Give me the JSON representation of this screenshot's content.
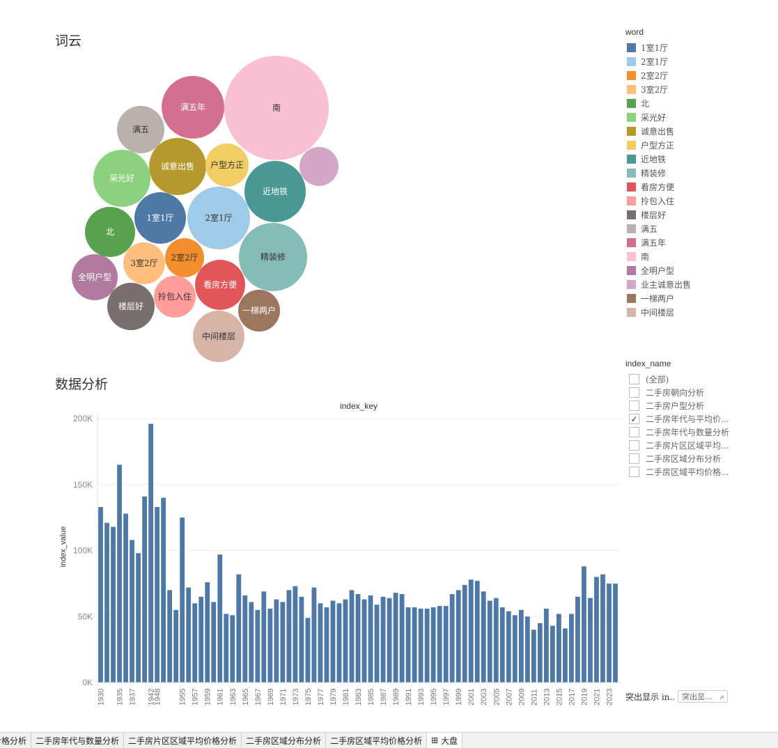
{
  "wordcloud": {
    "title": "词云",
    "legend_title": "word",
    "bubbles": [
      {
        "word": "南",
        "color": "#F9BFD3",
        "label": "南"
      },
      {
        "word": "满五年",
        "color": "#D4708F",
        "label": "满五年"
      },
      {
        "word": "满五",
        "color": "#BAB0AC",
        "label": "满五"
      },
      {
        "word": "业主诚意出售",
        "color": "#D4A6C8",
        "label": ""
      },
      {
        "word": "诚意出售",
        "color": "#B6992D",
        "label": "诚意出售"
      },
      {
        "word": "户型方正",
        "color": "#F1CE63",
        "label": "户型方正"
      },
      {
        "word": "采光好",
        "color": "#8CD17D",
        "label": "采光好"
      },
      {
        "word": "近地铁",
        "color": "#499894",
        "label": "近地铁"
      },
      {
        "word": "1室1厅",
        "color": "#4E79A7",
        "label": "1室1厅"
      },
      {
        "word": "2室1厅",
        "color": "#A0CBE8",
        "label": "2室1厅"
      },
      {
        "word": "北",
        "color": "#59A14F",
        "label": "北"
      },
      {
        "word": "精装修",
        "color": "#86BCB6",
        "label": "精装修"
      },
      {
        "word": "3室2厅",
        "color": "#FFBE7D",
        "label": "3室2厅"
      },
      {
        "word": "2室2厅",
        "color": "#F28E2B",
        "label": "2室2厅"
      },
      {
        "word": "全明户型",
        "color": "#B07AA1",
        "label": "全明户型"
      },
      {
        "word": "看房方便",
        "color": "#E15759",
        "label": "看房方便"
      },
      {
        "word": "拎包入住",
        "color": "#FF9D9A",
        "label": "拎包入住"
      },
      {
        "word": "楼层好",
        "color": "#79706E",
        "label": "楼层好"
      },
      {
        "word": "一梯两户",
        "color": "#9D7660",
        "label": "一梯两户"
      },
      {
        "word": "中间楼层",
        "color": "#D7B5A6",
        "label": "中间楼层"
      }
    ],
    "legend": [
      {
        "label": "1室1厅",
        "color": "#4E79A7"
      },
      {
        "label": "2室1厅",
        "color": "#A0CBE8"
      },
      {
        "label": "2室2厅",
        "color": "#F28E2B"
      },
      {
        "label": "3室2厅",
        "color": "#FFBE7D"
      },
      {
        "label": "北",
        "color": "#59A14F"
      },
      {
        "label": "采光好",
        "color": "#8CD17D"
      },
      {
        "label": "诚意出售",
        "color": "#B6992D"
      },
      {
        "label": "户型方正",
        "color": "#F1CE63"
      },
      {
        "label": "近地铁",
        "color": "#499894"
      },
      {
        "label": "精装修",
        "color": "#86BCB6"
      },
      {
        "label": "看房方便",
        "color": "#E15759"
      },
      {
        "label": "拎包入住",
        "color": "#FF9D9A"
      },
      {
        "label": "楼层好",
        "color": "#79706E"
      },
      {
        "label": "满五",
        "color": "#BAB0AC"
      },
      {
        "label": "满五年",
        "color": "#D4708F"
      },
      {
        "label": "南",
        "color": "#F9BFD3"
      },
      {
        "label": "全明户型",
        "color": "#B07AA1"
      },
      {
        "label": "业主诚意出售",
        "color": "#D4A6C8"
      },
      {
        "label": "一梯两户",
        "color": "#9D7660"
      },
      {
        "label": "中间楼层",
        "color": "#D7B5A6"
      }
    ]
  },
  "analysis": {
    "title": "数据分析",
    "filter": {
      "title": "index_name",
      "items": [
        {
          "label": "(全部)",
          "checked": false
        },
        {
          "label": "二手房朝向分析",
          "checked": false
        },
        {
          "label": "二手房户型分析",
          "checked": false
        },
        {
          "label": "二手房年代与平均价...",
          "checked": true
        },
        {
          "label": "二手房年代与数量分析",
          "checked": false
        },
        {
          "label": "二手房片区区域平均...",
          "checked": false
        },
        {
          "label": "二手房区域分布分析",
          "checked": false
        },
        {
          "label": "二手房区域平均价格...",
          "checked": false
        }
      ]
    },
    "highlight": {
      "label": "突出显示 in..",
      "placeholder": "突出显...",
      "icon": "search-icon"
    }
  },
  "chart_data": {
    "type": "bar",
    "title": "index_key",
    "xlabel": "",
    "ylabel": "index_value",
    "ylim": [
      0,
      200000
    ],
    "yticks": [
      {
        "v": 0,
        "label": "0K"
      },
      {
        "v": 50000,
        "label": "50K"
      },
      {
        "v": 100000,
        "label": "100K"
      },
      {
        "v": 150000,
        "label": "150K"
      },
      {
        "v": 200000,
        "label": "200K"
      }
    ],
    "grid": true,
    "bar_color": "#4E79A7",
    "categories": [
      "1930",
      "1933",
      "1934",
      "1935",
      "1936",
      "1937",
      "1938",
      "1941",
      "1942",
      "1948",
      "1950",
      "1953",
      "1954",
      "1955",
      "1956",
      "1957",
      "1958",
      "1959",
      "1960",
      "1961",
      "1962",
      "1963",
      "1964",
      "1965",
      "1966",
      "1967",
      "1968",
      "1969",
      "1970",
      "1971",
      "1972",
      "1973",
      "1974",
      "1975",
      "1976",
      "1977",
      "1978",
      "1979",
      "1980",
      "1981",
      "1982",
      "1983",
      "1984",
      "1985",
      "1986",
      "1987",
      "1988",
      "1989",
      "1990",
      "1991",
      "1992",
      "1993",
      "1994",
      "1995",
      "1996",
      "1997",
      "1998",
      "1999",
      "2000",
      "2001",
      "2002",
      "2003",
      "2004",
      "2005",
      "2006",
      "2007",
      "2008",
      "2009",
      "2010",
      "2011",
      "2012",
      "2013",
      "2014",
      "2015",
      "2016",
      "2017",
      "2018",
      "2019",
      "2020",
      "2021",
      "2022",
      "2023",
      "2024"
    ],
    "xtick_labels": [
      "1930",
      "1935",
      "1937",
      "1942",
      "1948",
      "1955",
      "1957",
      "1959",
      "1961",
      "1963",
      "1965",
      "1967",
      "1969",
      "1971",
      "1973",
      "1975",
      "1977",
      "1979",
      "1981",
      "1983",
      "1985",
      "1987",
      "1989",
      "1991",
      "1993",
      "1995",
      "1997",
      "1999",
      "2001",
      "2003",
      "2005",
      "2007",
      "2009",
      "2011",
      "2013",
      "2015",
      "2017",
      "2019",
      "2021",
      "2023"
    ],
    "values": [
      133000,
      121000,
      118000,
      165000,
      128000,
      108000,
      98000,
      141000,
      196000,
      133000,
      140000,
      70000,
      55000,
      125000,
      72000,
      60000,
      65000,
      76000,
      61000,
      97000,
      52000,
      51000,
      82000,
      66000,
      61000,
      55000,
      69000,
      56000,
      63000,
      61000,
      70000,
      73000,
      65000,
      49000,
      72000,
      60000,
      57000,
      62000,
      60000,
      63000,
      70000,
      67000,
      63000,
      66000,
      59000,
      65000,
      64000,
      68000,
      67000,
      57000,
      57000,
      56000,
      56000,
      57000,
      58000,
      58000,
      67000,
      70000,
      74000,
      78000,
      77000,
      69000,
      62000,
      64000,
      57000,
      54000,
      51000,
      55000,
      50000,
      40000,
      45000,
      56000,
      43000,
      52000,
      41000,
      52000,
      65000,
      88000,
      64000,
      80000,
      82000,
      75000,
      75000
    ]
  },
  "tabs": [
    {
      "label": "价格分析",
      "active": false
    },
    {
      "label": "二手房年代与数量分析",
      "active": false
    },
    {
      "label": "二手房片区区域平均价格分析",
      "active": false
    },
    {
      "label": "二手房区域分布分析",
      "active": false
    },
    {
      "label": "二手房区域平均价格分析",
      "active": false
    },
    {
      "label": "大盘",
      "active": true,
      "icon": "dashboard-grid-icon"
    }
  ]
}
